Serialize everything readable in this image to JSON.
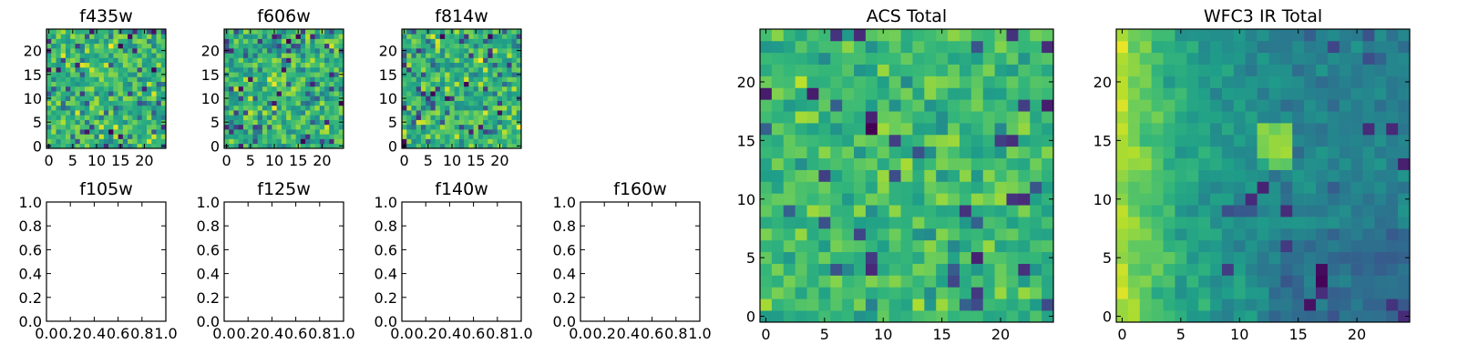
{
  "chart_data": [
    {
      "type": "heatmap",
      "title": "f435w",
      "xticks": [
        "0",
        "5",
        "10",
        "15",
        "20"
      ],
      "yticks": [
        "0",
        "5",
        "10",
        "15",
        "20"
      ],
      "xlim": [
        -0.5,
        24.5
      ],
      "ylim": [
        -0.5,
        24.5
      ],
      "grid": false,
      "colormap": "viridis",
      "seed": 11,
      "style": "noise"
    },
    {
      "type": "heatmap",
      "title": "f606w",
      "xticks": [
        "0",
        "5",
        "10",
        "15",
        "20"
      ],
      "yticks": [
        "0",
        "5",
        "10",
        "15",
        "20"
      ],
      "xlim": [
        -0.5,
        24.5
      ],
      "ylim": [
        -0.5,
        24.5
      ],
      "grid": false,
      "colormap": "viridis",
      "seed": 23,
      "style": "noise"
    },
    {
      "type": "heatmap",
      "title": "f814w",
      "xticks": [
        "0",
        "5",
        "10",
        "15",
        "20"
      ],
      "yticks": [
        "0",
        "5",
        "10",
        "15",
        "20"
      ],
      "xlim": [
        -0.5,
        24.5
      ],
      "ylim": [
        -0.5,
        24.5
      ],
      "grid": false,
      "colormap": "viridis",
      "seed": 37,
      "style": "noise"
    },
    {
      "type": "scatter",
      "title": "f105w",
      "xticks": [
        "0.0",
        "0.2",
        "0.4",
        "0.6",
        "0.8",
        "1.0"
      ],
      "yticks": [
        "0.0",
        "0.2",
        "0.4",
        "0.6",
        "0.8",
        "1.0"
      ],
      "xlim": [
        0,
        1
      ],
      "ylim": [
        0,
        1
      ],
      "values": []
    },
    {
      "type": "scatter",
      "title": "f125w",
      "xticks": [
        "0.0",
        "0.2",
        "0.4",
        "0.6",
        "0.8",
        "1.0"
      ],
      "yticks": [
        "0.0",
        "0.2",
        "0.4",
        "0.6",
        "0.8",
        "1.0"
      ],
      "xlim": [
        0,
        1
      ],
      "ylim": [
        0,
        1
      ],
      "values": []
    },
    {
      "type": "scatter",
      "title": "f140w",
      "xticks": [
        "0.0",
        "0.2",
        "0.4",
        "0.6",
        "0.8",
        "1.0"
      ],
      "yticks": [
        "0.0",
        "0.2",
        "0.4",
        "0.6",
        "0.8",
        "1.0"
      ],
      "xlim": [
        0,
        1
      ],
      "ylim": [
        0,
        1
      ],
      "values": []
    },
    {
      "type": "scatter",
      "title": "f160w",
      "xticks": [
        "0.0",
        "0.2",
        "0.4",
        "0.6",
        "0.8",
        "1.0"
      ],
      "yticks": [
        "0.0",
        "0.2",
        "0.4",
        "0.6",
        "0.8",
        "1.0"
      ],
      "xlim": [
        0,
        1
      ],
      "ylim": [
        0,
        1
      ],
      "values": []
    },
    {
      "type": "heatmap",
      "title": "ACS Total",
      "xticks": [
        "0",
        "5",
        "10",
        "15",
        "20"
      ],
      "yticks": [
        "0",
        "5",
        "10",
        "15",
        "20"
      ],
      "xlim": [
        -0.5,
        24.5
      ],
      "ylim": [
        -0.5,
        24.5
      ],
      "grid": false,
      "colormap": "viridis",
      "seed": 53,
      "style": "acs"
    },
    {
      "type": "heatmap",
      "title": "WFC3 IR Total",
      "xticks": [
        "0",
        "5",
        "10",
        "15",
        "20"
      ],
      "yticks": [
        "0",
        "5",
        "10",
        "15",
        "20"
      ],
      "xlim": [
        -0.5,
        24.5
      ],
      "ylim": [
        -0.5,
        24.5
      ],
      "grid": false,
      "colormap": "viridis",
      "seed": 71,
      "style": "wfc3"
    }
  ]
}
